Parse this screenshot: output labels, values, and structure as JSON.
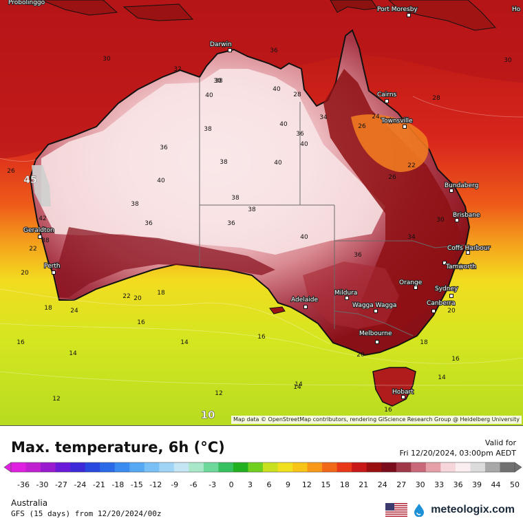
{
  "title": "Max. temperature, 6h (°C)",
  "valid_label": "Valid for",
  "valid_time": "Fri 12/20/2024, 03:00pm AEDT",
  "region": "Australia",
  "model_run": "GFS (15 days) from 12/20/2024/00z",
  "brand": "meteologix.com",
  "attribution": "Map data © OpenStreetMap contributors, rendering GIScience Research Group @ Heidelberg University",
  "legend": {
    "ticks": [
      "-36",
      "-30",
      "-27",
      "-24",
      "-21",
      "-18",
      "-15",
      "-12",
      "-9",
      "-6",
      "-3",
      "0",
      "3",
      "6",
      "9",
      "12",
      "15",
      "18",
      "21",
      "24",
      "27",
      "30",
      "33",
      "36",
      "39",
      "44",
      "50"
    ],
    "colors": [
      "#e020e0",
      "#c020d0",
      "#9a1ad0",
      "#6a1ad8",
      "#3c2ad8",
      "#2848e0",
      "#2a6ae8",
      "#3a8cf0",
      "#56a8f4",
      "#78c0f6",
      "#a0d4f6",
      "#c4e6f4",
      "#a8e8c8",
      "#6cd89a",
      "#36c060",
      "#20b020",
      "#70d020",
      "#c8e020",
      "#f0e020",
      "#f8c418",
      "#f89818",
      "#f06818",
      "#e83818",
      "#c81818",
      "#9a1010",
      "#7a0c1c",
      "#a03848",
      "#c86878",
      "#e6a0a8",
      "#f6d6da",
      "#fbeef0",
      "#dcdcdc",
      "#a8a8a8",
      "#707070"
    ]
  },
  "places": [
    {
      "name": "Probolinggo"
    },
    {
      "name": "Port Moresby"
    },
    {
      "name": "Darwin"
    },
    {
      "name": "Cairns"
    },
    {
      "name": "Townsville"
    },
    {
      "name": "Bundaberg"
    },
    {
      "name": "Brisbane"
    },
    {
      "name": "Coffs Harbour"
    },
    {
      "name": "Tamworth"
    },
    {
      "name": "Sydney"
    },
    {
      "name": "Orange"
    },
    {
      "name": "Canberra"
    },
    {
      "name": "Wagga Wagga"
    },
    {
      "name": "Mildura"
    },
    {
      "name": "Adelaide"
    },
    {
      "name": "Melbourne"
    },
    {
      "name": "Hobart"
    },
    {
      "name": "Geraldton"
    },
    {
      "name": "Perth"
    },
    {
      "name": "Ho"
    }
  ],
  "temp_labels": [
    {
      "text": "30"
    },
    {
      "text": "32"
    },
    {
      "text": "36"
    },
    {
      "text": "38"
    },
    {
      "text": "40"
    },
    {
      "text": "38"
    },
    {
      "text": "40"
    },
    {
      "text": "40"
    },
    {
      "text": "36"
    },
    {
      "text": "40"
    },
    {
      "text": "38"
    },
    {
      "text": "40"
    },
    {
      "text": "38"
    },
    {
      "text": "38"
    },
    {
      "text": "38"
    },
    {
      "text": "40"
    },
    {
      "text": "36"
    },
    {
      "text": "36"
    },
    {
      "text": "40"
    },
    {
      "text": "34"
    },
    {
      "text": "36"
    },
    {
      "text": "36"
    },
    {
      "text": "26"
    },
    {
      "text": "28"
    },
    {
      "text": "26"
    },
    {
      "text": "24"
    },
    {
      "text": "22"
    },
    {
      "text": "34"
    },
    {
      "text": "30"
    },
    {
      "text": "26"
    },
    {
      "text": "22"
    },
    {
      "text": "20"
    },
    {
      "text": "18"
    },
    {
      "text": "18"
    },
    {
      "text": "20"
    },
    {
      "text": "22"
    },
    {
      "text": "24"
    },
    {
      "text": "16"
    },
    {
      "text": "16"
    },
    {
      "text": "14"
    },
    {
      "text": "14"
    },
    {
      "text": "14"
    },
    {
      "text": "16"
    },
    {
      "text": "12"
    },
    {
      "text": "12"
    },
    {
      "text": "14"
    },
    {
      "text": "16"
    },
    {
      "text": "16"
    },
    {
      "text": "14"
    },
    {
      "text": "20"
    },
    {
      "text": "20"
    },
    {
      "text": "18"
    },
    {
      "text": "30"
    },
    {
      "text": "28"
    },
    {
      "text": "30"
    },
    {
      "text": "42"
    },
    {
      "text": "38"
    },
    {
      "text": "45"
    },
    {
      "text": "10"
    }
  ]
}
